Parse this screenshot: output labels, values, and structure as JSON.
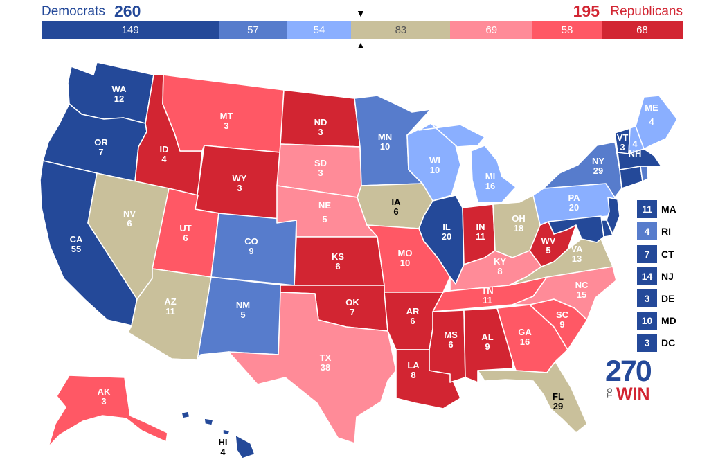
{
  "header": {
    "dem_label": "Democrats",
    "dem_total": "260",
    "rep_total": "195",
    "rep_label": "Republicans",
    "marker_top": "▼",
    "marker_bottom": "▲"
  },
  "ratings": [
    {
      "key": "safe_d",
      "count": "149",
      "value": 149,
      "color": "#244999"
    },
    {
      "key": "likely_d",
      "count": "57",
      "value": 57,
      "color": "#577ccc"
    },
    {
      "key": "lean_d",
      "count": "54",
      "value": 54,
      "color": "#8aafff"
    },
    {
      "key": "tossup",
      "count": "83",
      "value": 83,
      "color": "#c9c09b"
    },
    {
      "key": "lean_r",
      "count": "69",
      "value": 69,
      "color": "#ff8b98"
    },
    {
      "key": "likely_r",
      "count": "58",
      "value": 58,
      "color": "#ff5865"
    },
    {
      "key": "safe_r",
      "count": "68",
      "value": 68,
      "color": "#d22532"
    }
  ],
  "states": [
    {
      "abbr": "WA",
      "ev": "12",
      "rating": "safe_d"
    },
    {
      "abbr": "OR",
      "ev": "7",
      "rating": "safe_d"
    },
    {
      "abbr": "CA",
      "ev": "55",
      "rating": "safe_d"
    },
    {
      "abbr": "ID",
      "ev": "4",
      "rating": "safe_r"
    },
    {
      "abbr": "NV",
      "ev": "6",
      "rating": "tossup"
    },
    {
      "abbr": "MT",
      "ev": "3",
      "rating": "likely_r"
    },
    {
      "abbr": "WY",
      "ev": "3",
      "rating": "safe_r"
    },
    {
      "abbr": "UT",
      "ev": "6",
      "rating": "likely_r"
    },
    {
      "abbr": "AZ",
      "ev": "11",
      "rating": "tossup"
    },
    {
      "abbr": "CO",
      "ev": "9",
      "rating": "likely_d"
    },
    {
      "abbr": "NM",
      "ev": "5",
      "rating": "likely_d"
    },
    {
      "abbr": "ND",
      "ev": "3",
      "rating": "safe_r"
    },
    {
      "abbr": "SD",
      "ev": "3",
      "rating": "lean_r"
    },
    {
      "abbr": "NE",
      "ev": "5",
      "rating": "lean_r"
    },
    {
      "abbr": "KS",
      "ev": "6",
      "rating": "safe_r"
    },
    {
      "abbr": "OK",
      "ev": "7",
      "rating": "safe_r"
    },
    {
      "abbr": "TX",
      "ev": "38",
      "rating": "lean_r"
    },
    {
      "abbr": "MN",
      "ev": "10",
      "rating": "likely_d"
    },
    {
      "abbr": "IA",
      "ev": "6",
      "rating": "tossup"
    },
    {
      "abbr": "MO",
      "ev": "10",
      "rating": "likely_r"
    },
    {
      "abbr": "AR",
      "ev": "6",
      "rating": "safe_r"
    },
    {
      "abbr": "LA",
      "ev": "8",
      "rating": "safe_r"
    },
    {
      "abbr": "WI",
      "ev": "10",
      "rating": "lean_d"
    },
    {
      "abbr": "IL",
      "ev": "20",
      "rating": "safe_d"
    },
    {
      "abbr": "MI",
      "ev": "16",
      "rating": "lean_d"
    },
    {
      "abbr": "IN",
      "ev": "11",
      "rating": "safe_r"
    },
    {
      "abbr": "OH",
      "ev": "18",
      "rating": "tossup"
    },
    {
      "abbr": "KY",
      "ev": "8",
      "rating": "lean_r"
    },
    {
      "abbr": "TN",
      "ev": "11",
      "rating": "likely_r"
    },
    {
      "abbr": "MS",
      "ev": "6",
      "rating": "safe_r"
    },
    {
      "abbr": "AL",
      "ev": "9",
      "rating": "safe_r"
    },
    {
      "abbr": "GA",
      "ev": "16",
      "rating": "likely_r"
    },
    {
      "abbr": "FL",
      "ev": "29",
      "rating": "tossup"
    },
    {
      "abbr": "SC",
      "ev": "9",
      "rating": "likely_r"
    },
    {
      "abbr": "NC",
      "ev": "15",
      "rating": "lean_r"
    },
    {
      "abbr": "VA",
      "ev": "13",
      "rating": "tossup"
    },
    {
      "abbr": "WV",
      "ev": "5",
      "rating": "safe_r"
    },
    {
      "abbr": "PA",
      "ev": "20",
      "rating": "lean_d"
    },
    {
      "abbr": "NY",
      "ev": "29",
      "rating": "likely_d"
    },
    {
      "abbr": "VT",
      "ev": "3",
      "rating": "safe_d"
    },
    {
      "abbr": "NH",
      "ev": "4",
      "rating": "lean_d"
    },
    {
      "abbr": "ME",
      "ev": "4",
      "rating": "lean_d"
    },
    {
      "abbr": "AK",
      "ev": "3",
      "rating": "likely_r"
    },
    {
      "abbr": "HI",
      "ev": "4",
      "rating": "safe_d"
    }
  ],
  "small_states": [
    {
      "abbr": "MA",
      "ev": "11",
      "rating": "safe_d"
    },
    {
      "abbr": "RI",
      "ev": "4",
      "rating": "likely_d"
    },
    {
      "abbr": "CT",
      "ev": "7",
      "rating": "safe_d"
    },
    {
      "abbr": "NJ",
      "ev": "14",
      "rating": "safe_d"
    },
    {
      "abbr": "DE",
      "ev": "3",
      "rating": "safe_d"
    },
    {
      "abbr": "MD",
      "ev": "10",
      "rating": "safe_d"
    },
    {
      "abbr": "DC",
      "ev": "3",
      "rating": "safe_d"
    }
  ],
  "logo": {
    "number": "270",
    "to": "TO",
    "win": "WIN"
  }
}
